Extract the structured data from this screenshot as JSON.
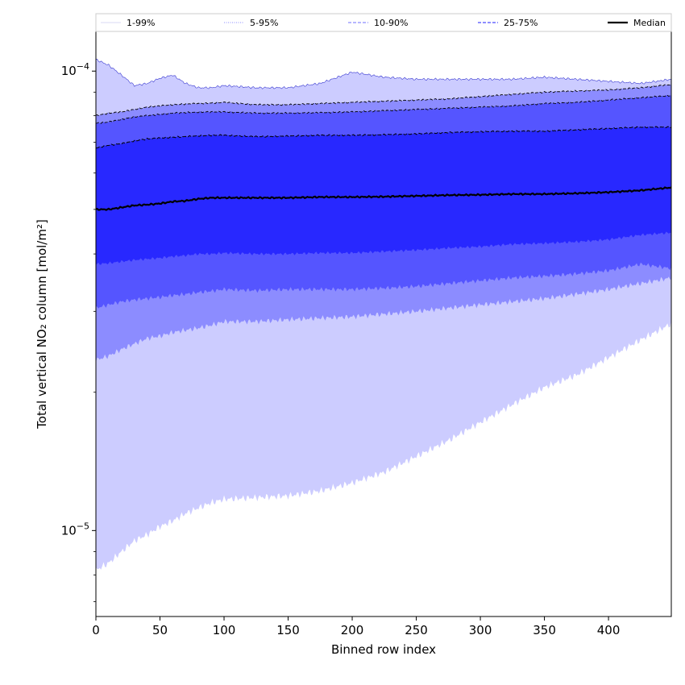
{
  "chart_data": {
    "type": "area",
    "xlabel": "Binned row index",
    "ylabel": "Total vertical NO₂ column [mol/m²]",
    "xlim": [
      0,
      449
    ],
    "ylim": [
      6.5e-06,
      0.000122
    ],
    "yscale": "log",
    "x_ticks": [
      0,
      50,
      100,
      150,
      200,
      250,
      300,
      350,
      400
    ],
    "y_ticks": [
      {
        "value": 1e-05,
        "base": "10",
        "exp": "−5"
      },
      {
        "value": 0.0001,
        "base": "10",
        "exp": "−4"
      }
    ],
    "legend_position": "top",
    "legend": [
      {
        "label": "1-99%",
        "style": "solid-thin",
        "color": "#d9d9f5"
      },
      {
        "label": "5-95%",
        "style": "dotted",
        "color": "#8c8cff"
      },
      {
        "label": "10-90%",
        "style": "dashed",
        "color": "#8c8cff"
      },
      {
        "label": "25-75%",
        "style": "dashed",
        "color": "#4a4aff"
      },
      {
        "label": "Median",
        "style": "solid-bold",
        "color": "#000000"
      }
    ],
    "band_colors": {
      "p01_p99": "#ccccff",
      "p05_p95": "#8c8cff",
      "p10_p90": "#5555ff",
      "p25_p75": "#2828ff"
    },
    "x": [
      0,
      10,
      20,
      30,
      40,
      50,
      60,
      70,
      80,
      90,
      100,
      125,
      150,
      175,
      200,
      225,
      250,
      275,
      300,
      325,
      350,
      375,
      400,
      425,
      449
    ],
    "series": [
      {
        "name": "p99",
        "values": [
          0.000106,
          0.000103,
          9.8e-05,
          9.3e-05,
          9.4e-05,
          9.65e-05,
          9.8e-05,
          9.4e-05,
          9.2e-05,
          9.2e-05,
          9.3e-05,
          9.2e-05,
          9.2e-05,
          9.4e-05,
          9.95e-05,
          9.7e-05,
          9.6e-05,
          9.6e-05,
          9.6e-05,
          9.6e-05,
          9.7e-05,
          9.6e-05,
          9.5e-05,
          9.4e-05,
          9.6e-05
        ]
      },
      {
        "name": "p95",
        "values": [
          8e-05,
          8.1e-05,
          8.15e-05,
          8.25e-05,
          8.35e-05,
          8.4e-05,
          8.45e-05,
          8.48e-05,
          8.5e-05,
          8.52e-05,
          8.55e-05,
          8.45e-05,
          8.45e-05,
          8.5e-05,
          8.55e-05,
          8.6e-05,
          8.65e-05,
          8.7e-05,
          8.8e-05,
          8.9e-05,
          9e-05,
          9.05e-05,
          9.1e-05,
          9.2e-05,
          9.35e-05
        ]
      },
      {
        "name": "p90",
        "values": [
          7.7e-05,
          7.75e-05,
          7.85e-05,
          7.95e-05,
          8e-05,
          8.05e-05,
          8.1e-05,
          8.12e-05,
          8.14e-05,
          8.15e-05,
          8.15e-05,
          8.1e-05,
          8.1e-05,
          8.12e-05,
          8.15e-05,
          8.2e-05,
          8.25e-05,
          8.3e-05,
          8.35e-05,
          8.4e-05,
          8.5e-05,
          8.55e-05,
          8.65e-05,
          8.75e-05,
          8.85e-05
        ]
      },
      {
        "name": "p75",
        "values": [
          6.8e-05,
          6.9e-05,
          6.95e-05,
          7.05e-05,
          7.12e-05,
          7.15e-05,
          7.18e-05,
          7.2e-05,
          7.23e-05,
          7.25e-05,
          7.25e-05,
          7.2e-05,
          7.22e-05,
          7.25e-05,
          7.25e-05,
          7.27e-05,
          7.3e-05,
          7.35e-05,
          7.38e-05,
          7.4e-05,
          7.4e-05,
          7.45e-05,
          7.5e-05,
          7.55e-05,
          7.55e-05
        ]
      },
      {
        "name": "Median",
        "values": [
          5e-05,
          5e-05,
          5.05e-05,
          5.1e-05,
          5.12e-05,
          5.15e-05,
          5.2e-05,
          5.22e-05,
          5.27e-05,
          5.3e-05,
          5.3e-05,
          5.3e-05,
          5.3e-05,
          5.32e-05,
          5.32e-05,
          5.33e-05,
          5.35e-05,
          5.37e-05,
          5.38e-05,
          5.4e-05,
          5.4e-05,
          5.42e-05,
          5.45e-05,
          5.5e-05,
          5.58e-05
        ]
      },
      {
        "name": "p25",
        "values": [
          3.8e-05,
          3.82e-05,
          3.85e-05,
          3.88e-05,
          3.9e-05,
          3.92e-05,
          3.95e-05,
          3.97e-05,
          4e-05,
          4e-05,
          4.02e-05,
          4e-05,
          4e-05,
          4.02e-05,
          4.02e-05,
          4.05e-05,
          4.08e-05,
          4.12e-05,
          4.15e-05,
          4.2e-05,
          4.22e-05,
          4.25e-05,
          4.3e-05,
          4.4e-05,
          4.45e-05
        ]
      },
      {
        "name": "p10",
        "values": [
          3.05e-05,
          3.1e-05,
          3.15e-05,
          3.18e-05,
          3.2e-05,
          3.22e-05,
          3.25e-05,
          3.27e-05,
          3.3e-05,
          3.32e-05,
          3.35e-05,
          3.33e-05,
          3.35e-05,
          3.35e-05,
          3.35e-05,
          3.37e-05,
          3.4e-05,
          3.45e-05,
          3.5e-05,
          3.55e-05,
          3.58e-05,
          3.62e-05,
          3.68e-05,
          3.8e-05,
          3.72e-05
        ]
      },
      {
        "name": "p05",
        "values": [
          2.35e-05,
          2.4e-05,
          2.48e-05,
          2.55e-05,
          2.62e-05,
          2.65e-05,
          2.7e-05,
          2.73e-05,
          2.76e-05,
          2.8e-05,
          2.85e-05,
          2.85e-05,
          2.88e-05,
          2.9e-05,
          2.92e-05,
          2.96e-05,
          3e-05,
          3.05e-05,
          3.1e-05,
          3.15e-05,
          3.2e-05,
          3.27e-05,
          3.35e-05,
          3.45e-05,
          3.55e-05
        ]
      },
      {
        "name": "p01",
        "values": [
          8.2e-06,
          8.5e-06,
          9e-06,
          9.5e-06,
          9.8e-06,
          1.02e-05,
          1.05e-05,
          1.09e-05,
          1.12e-05,
          1.15e-05,
          1.17e-05,
          1.18e-05,
          1.19e-05,
          1.22e-05,
          1.27e-05,
          1.34e-05,
          1.45e-05,
          1.57e-05,
          1.72e-05,
          1.88e-05,
          2.05e-05,
          2.18e-05,
          2.38e-05,
          2.6e-05,
          2.82e-05
        ]
      }
    ]
  }
}
